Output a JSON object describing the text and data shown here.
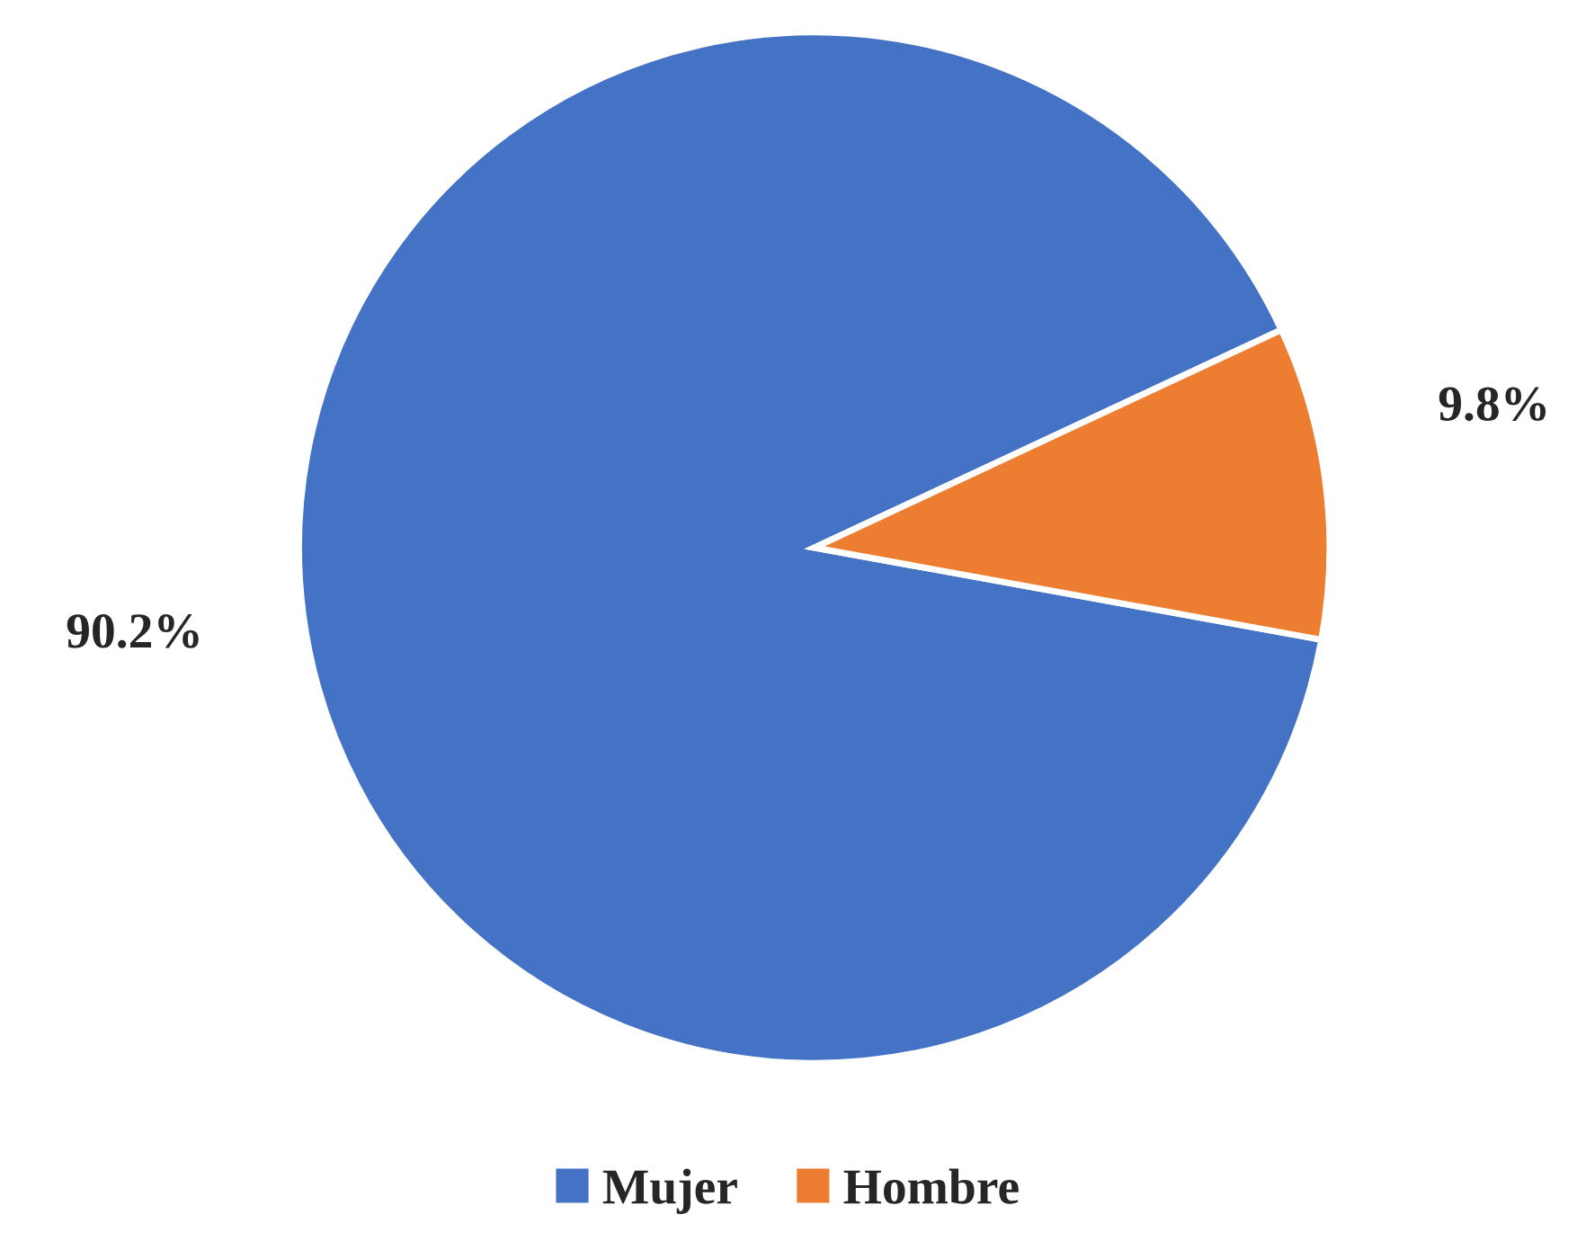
{
  "chart_data": {
    "type": "pie",
    "categories": [
      "Mujer",
      "Hombre"
    ],
    "values": [
      90.2,
      9.8
    ],
    "colors": [
      "#4472c4",
      "#ed7d31"
    ],
    "value_labels": [
      "90.2%",
      "9.8%"
    ],
    "legend": "bottom"
  }
}
